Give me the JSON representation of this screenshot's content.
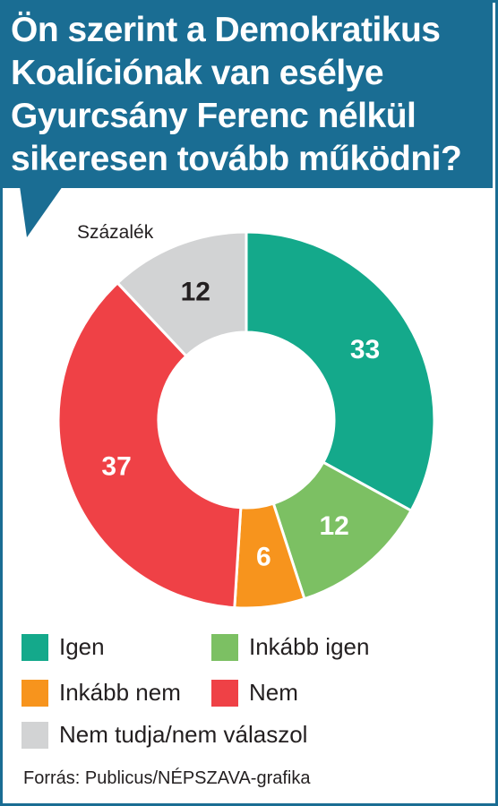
{
  "header": {
    "title": "Ön szerint a Demokratikus Koalíciónak van esélye Gyurcsány Ferenc nélkül sikeresen tovább működni?"
  },
  "unit_label": "Százalék",
  "chart_data": {
    "type": "pie",
    "variant": "donut",
    "slices": [
      {
        "name": "Igen",
        "value": 33,
        "label": "33",
        "color": "#14a98b",
        "label_color": "#ffffff"
      },
      {
        "name": "Inkább igen",
        "value": 12,
        "label": "12",
        "color": "#7cc063",
        "label_color": "#ffffff"
      },
      {
        "name": "Inkább nem",
        "value": 6,
        "label": "6",
        "color": "#f7941d",
        "label_color": "#ffffff"
      },
      {
        "name": "Nem",
        "value": 37,
        "label": "37",
        "color": "#ef4146",
        "label_color": "#ffffff"
      },
      {
        "name": "Nem tudja/nem válaszol",
        "value": 12,
        "label": "12",
        "color": "#d2d3d4",
        "label_color": "#231f20"
      }
    ],
    "start": "12 o'clock",
    "direction": "clockwise"
  },
  "legend": {
    "items": [
      {
        "label": "Igen",
        "color": "#14a98b"
      },
      {
        "label": "Inkább igen",
        "color": "#7cc063"
      },
      {
        "label": "Inkább nem",
        "color": "#f7941d"
      },
      {
        "label": "Nem",
        "color": "#ef4146"
      },
      {
        "label": "Nem tudja/nem válaszol",
        "color": "#d2d3d4"
      }
    ]
  },
  "footer": {
    "source": "Forrás: Publicus/NÉPSZAVA-grafika"
  },
  "colors": {
    "header_bg": "#1a6d93",
    "border": "#1a6d93"
  }
}
